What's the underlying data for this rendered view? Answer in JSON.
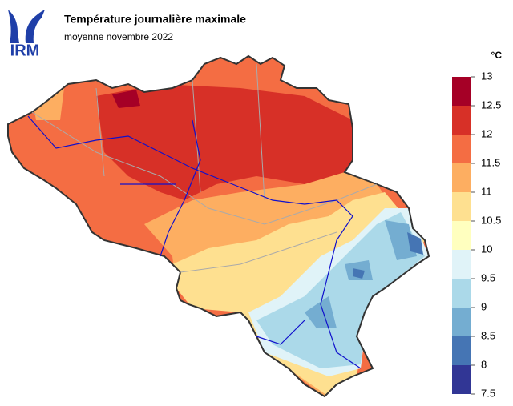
{
  "logo": "IRM",
  "title": "Température journalière maximale",
  "subtitle": "moyenne novembre 2022",
  "legend": {
    "unit": "°C",
    "ticks": [
      13,
      12.5,
      12,
      11.5,
      11,
      10.5,
      10,
      9.5,
      9,
      8.5,
      8,
      7.5
    ],
    "colors": [
      "#a50026",
      "#d73027",
      "#f46d43",
      "#fdae61",
      "#fee090",
      "#ffffbf",
      "#e0f3f8",
      "#abd9e9",
      "#74add1",
      "#4575b4",
      "#313695"
    ]
  }
}
